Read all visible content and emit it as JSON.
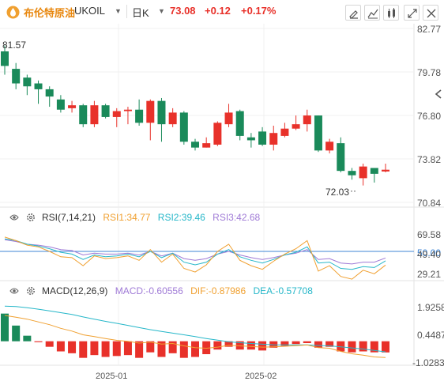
{
  "header": {
    "name": "布伦特原油",
    "code": "UKOIL",
    "period": "日K",
    "price": "73.08",
    "change": "+0.12",
    "change_pct": "+0.17%"
  },
  "toolbar": [
    "draw-icon",
    "indicator-icon",
    "compare-icon",
    "settings-icon",
    "fullscreen-icon",
    "close-icon"
  ],
  "colors": {
    "up": "#e8312a",
    "down": "#1a8a5a",
    "accent": "#e8870e",
    "grid": "#eeeeee"
  },
  "price_axis": {
    "labels": [
      "82.77",
      "79.78",
      "76.80",
      "73.82",
      "70.84"
    ]
  },
  "annotations": {
    "high": "81.57",
    "low": "72.03"
  },
  "rsi": {
    "label": "RSI(7,14,21)",
    "rsi1": "RSI1:34.77",
    "rsi2": "RSI2:39.46",
    "rsi3": "RSI3:42.68",
    "axis": [
      "69.58",
      "50.00",
      "49.40",
      "29.21"
    ]
  },
  "macd": {
    "label": "MACD(12,26,9)",
    "macd": "MACD:-0.60556",
    "dif": "DIF:-0.87986",
    "dea": "DEA:-0.57708",
    "axis": [
      "1.92586",
      "0.44876",
      "-1.02834"
    ]
  },
  "x_labels": [
    "2025-01",
    "2025-02"
  ],
  "chart_data": {
    "type": "candlestick",
    "candles": [
      {
        "o": 81.2,
        "c": 80.2,
        "h": 81.6,
        "l": 79.6
      },
      {
        "o": 80.0,
        "c": 79.0,
        "h": 80.4,
        "l": 78.6
      },
      {
        "o": 79.4,
        "c": 78.8,
        "h": 79.6,
        "l": 78.2
      },
      {
        "o": 79.0,
        "c": 78.6,
        "h": 79.2,
        "l": 77.6
      },
      {
        "o": 78.6,
        "c": 78.1,
        "h": 78.8,
        "l": 77.4
      },
      {
        "o": 77.9,
        "c": 77.2,
        "h": 78.2,
        "l": 77.0
      },
      {
        "o": 77.3,
        "c": 77.5,
        "h": 77.8,
        "l": 77.0
      },
      {
        "o": 77.5,
        "c": 76.2,
        "h": 77.6,
        "l": 76.0
      },
      {
        "o": 76.2,
        "c": 77.5,
        "h": 77.8,
        "l": 76.0
      },
      {
        "o": 77.5,
        "c": 76.7,
        "h": 77.6,
        "l": 76.6
      },
      {
        "o": 76.7,
        "c": 77.1,
        "h": 77.3,
        "l": 76.0
      },
      {
        "o": 77.1,
        "c": 77.2,
        "h": 77.4,
        "l": 76.2
      },
      {
        "o": 77.2,
        "c": 76.3,
        "h": 77.9,
        "l": 76.1
      },
      {
        "o": 76.3,
        "c": 77.8,
        "h": 77.9,
        "l": 75.1
      },
      {
        "o": 77.8,
        "c": 76.2,
        "h": 78.0,
        "l": 75.0
      },
      {
        "o": 76.2,
        "c": 77.0,
        "h": 77.3,
        "l": 76.0
      },
      {
        "o": 77.0,
        "c": 75.0,
        "h": 77.1,
        "l": 74.8
      },
      {
        "o": 75.0,
        "c": 74.6,
        "h": 75.2,
        "l": 74.4
      },
      {
        "o": 74.6,
        "c": 74.9,
        "h": 75.3,
        "l": 74.6
      },
      {
        "o": 74.8,
        "c": 76.3,
        "h": 76.4,
        "l": 74.7
      },
      {
        "o": 76.2,
        "c": 77.0,
        "h": 77.6,
        "l": 76.0
      },
      {
        "o": 77.1,
        "c": 75.4,
        "h": 77.2,
        "l": 75.1
      },
      {
        "o": 75.3,
        "c": 75.1,
        "h": 75.6,
        "l": 74.6
      },
      {
        "o": 75.7,
        "c": 74.8,
        "h": 76.0,
        "l": 74.7
      },
      {
        "o": 74.8,
        "c": 75.6,
        "h": 76.1,
        "l": 74.4
      },
      {
        "o": 75.4,
        "c": 75.9,
        "h": 76.3,
        "l": 75.3
      },
      {
        "o": 75.9,
        "c": 76.2,
        "h": 76.8,
        "l": 75.8
      },
      {
        "o": 76.2,
        "c": 76.8,
        "h": 77.2,
        "l": 75.7
      },
      {
        "o": 76.8,
        "c": 74.4,
        "h": 76.8,
        "l": 74.3
      },
      {
        "o": 74.4,
        "c": 75.0,
        "h": 75.2,
        "l": 74.2
      },
      {
        "o": 74.9,
        "c": 73.0,
        "h": 75.3,
        "l": 72.9
      },
      {
        "o": 73.0,
        "c": 72.7,
        "h": 73.2,
        "l": 72.4
      },
      {
        "o": 72.5,
        "c": 73.3,
        "h": 73.5,
        "l": 72.0
      },
      {
        "o": 73.2,
        "c": 72.8,
        "h": 73.2,
        "l": 72.2
      },
      {
        "o": 72.96,
        "c": 73.08,
        "h": 73.5,
        "l": 72.9
      }
    ],
    "rsi1": [
      66,
      62,
      57,
      55,
      50,
      44,
      43,
      34,
      45,
      42,
      43,
      45,
      40,
      52,
      38,
      47,
      31,
      27,
      35,
      50,
      58,
      40,
      34,
      30,
      39,
      47,
      53,
      62,
      28,
      34,
      22,
      19,
      29,
      25,
      34.77
    ],
    "rsi2": [
      64,
      62,
      58,
      56,
      53,
      49,
      47,
      41,
      46,
      44,
      45,
      47,
      44,
      50,
      43,
      48,
      38,
      35,
      38,
      47,
      52,
      44,
      40,
      37,
      41,
      46,
      49,
      55,
      37,
      38,
      31,
      30,
      33,
      32,
      39.46
    ],
    "rsi3": [
      63,
      61,
      58,
      57,
      55,
      52,
      51,
      46,
      48,
      47,
      47,
      48,
      46,
      50,
      45,
      48,
      42,
      40,
      42,
      47,
      50,
      46,
      43,
      41,
      43,
      46,
      48,
      52,
      41,
      42,
      37,
      36,
      38,
      38,
      42.68
    ],
    "macd_hist": [
      1.5,
      0.85,
      0.3,
      -0.05,
      -0.3,
      -0.55,
      -0.65,
      -0.9,
      -0.75,
      -0.85,
      -0.8,
      -0.75,
      -0.9,
      -0.6,
      -0.85,
      -0.65,
      -0.9,
      -0.85,
      -0.7,
      -0.45,
      -0.3,
      -0.45,
      -0.45,
      -0.5,
      -0.35,
      -0.25,
      -0.15,
      -0.1,
      -0.35,
      -0.3,
      -0.55,
      -0.6,
      -0.55,
      -0.6,
      -0.60556
    ],
    "dif": [
      1.4,
      1.3,
      1.2,
      1.05,
      0.9,
      0.7,
      0.55,
      0.35,
      0.25,
      0.15,
      0.05,
      0.0,
      -0.1,
      -0.05,
      -0.15,
      -0.12,
      -0.25,
      -0.35,
      -0.38,
      -0.32,
      -0.22,
      -0.25,
      -0.28,
      -0.32,
      -0.3,
      -0.27,
      -0.24,
      -0.2,
      -0.35,
      -0.38,
      -0.55,
      -0.68,
      -0.75,
      -0.85,
      -0.87986
    ],
    "dea": [
      1.9,
      1.88,
      1.82,
      1.74,
      1.65,
      1.55,
      1.45,
      1.32,
      1.2,
      1.08,
      0.97,
      0.86,
      0.74,
      0.63,
      0.53,
      0.44,
      0.35,
      0.25,
      0.15,
      0.06,
      -0.03,
      -0.08,
      -0.12,
      -0.16,
      -0.19,
      -0.2,
      -0.2,
      -0.2,
      -0.23,
      -0.25,
      -0.3,
      -0.36,
      -0.42,
      -0.5,
      -0.57708
    ],
    "price_range": [
      70.84,
      82.77
    ],
    "rsi_range": [
      20,
      80
    ],
    "macd_range": [
      -1.3,
      2.3
    ]
  }
}
